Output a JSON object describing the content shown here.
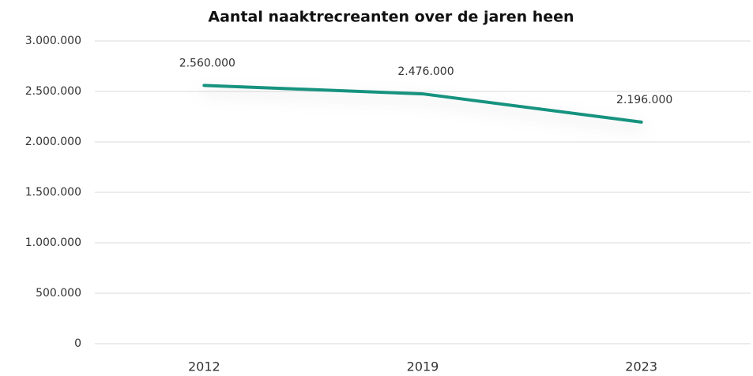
{
  "chart_data": {
    "type": "line",
    "title": "Aantal naaktrecreanten over de jaren heen",
    "categories": [
      "2012",
      "2019",
      "2023"
    ],
    "values": [
      2560000,
      2476000,
      2196000
    ],
    "value_labels": [
      "2.560.000",
      "2.476.000",
      "2.196.000"
    ],
    "color": "#13937f",
    "ylim": [
      0,
      3000000
    ],
    "yticks": [
      0,
      {
        "value": 500000,
        "label": "500.000"
      },
      {
        "value": 1000000,
        "label": "1.000.000"
      },
      {
        "value": 1500000,
        "label": "1.500.000"
      },
      {
        "value": 2000000,
        "label": "2.000.000"
      },
      {
        "value": 2500000,
        "label": "2.500.000"
      },
      {
        "value": 3000000,
        "label": "3.000.000"
      }
    ],
    "grid": true
  }
}
